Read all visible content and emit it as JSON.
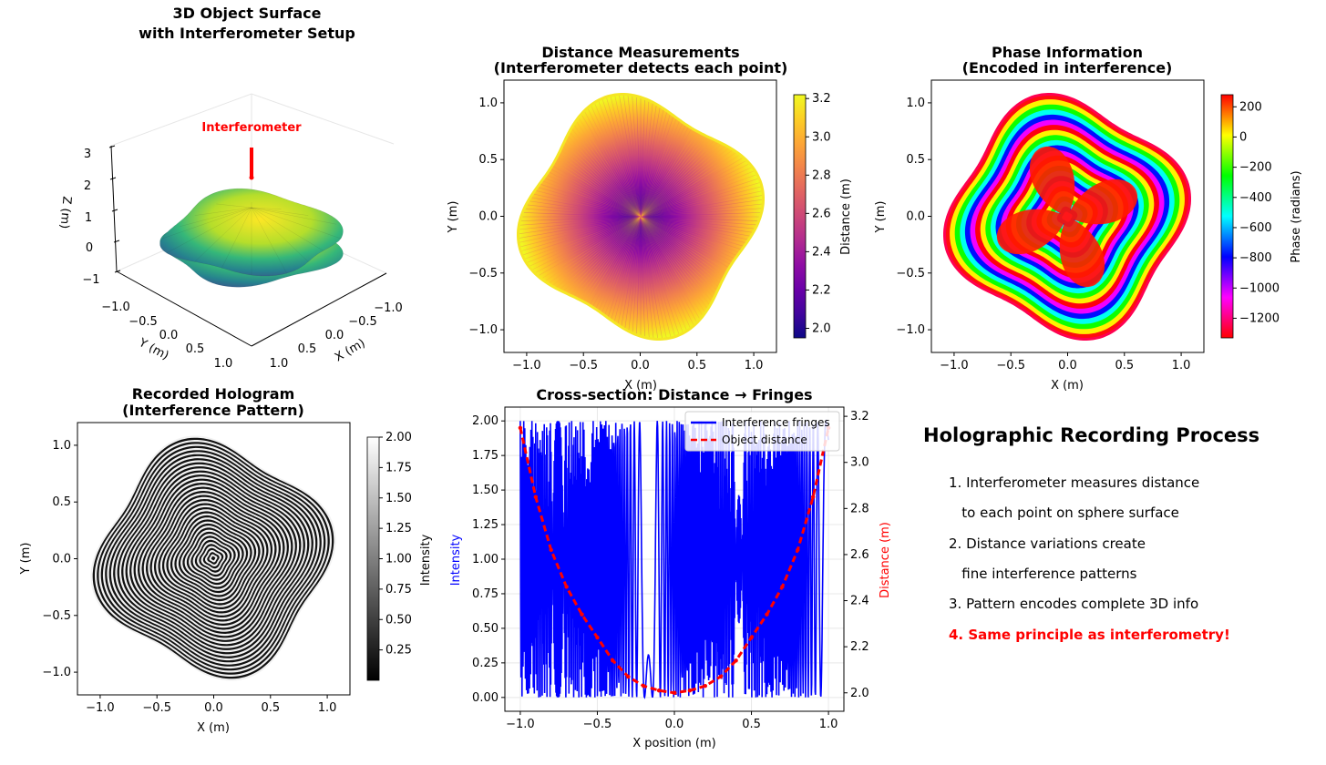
{
  "colors": {
    "plasma": [
      "#0d0887",
      "#41049d",
      "#6a00a8",
      "#8f0da4",
      "#b12a90",
      "#cc4778",
      "#e16462",
      "#f2844b",
      "#fca636",
      "#fcce25",
      "#f0f921"
    ],
    "hsv": [
      "#ff0000",
      "#ffff00",
      "#00ff00",
      "#00ffff",
      "#0000ff",
      "#ff00ff",
      "#ff0000"
    ],
    "viridis": [
      "#440154",
      "#3b528b",
      "#21918c",
      "#5ec962",
      "#fde725"
    ],
    "fringe": "#0000ff",
    "distance": "#ff0000",
    "annotation": "#ff0000"
  },
  "panel3d": {
    "title": [
      "3D Object Surface",
      "with Interferometer Setup"
    ],
    "annotation": "Interferometer",
    "zlabel": "Z (m)",
    "xlabel": "X (m)",
    "ylabel": "Y (m)",
    "zticks": [
      "3",
      "2",
      "1",
      "0",
      "−1"
    ],
    "xticks": [
      "−1.0",
      "−0.5",
      "0.0",
      "0.5",
      "1.0"
    ],
    "yticks": [
      "−1.0",
      "−0.5",
      "0.0",
      "0.5",
      "1.0"
    ]
  },
  "panelDist": {
    "title": [
      "Distance Measurements",
      "(Interferometer detects each point)"
    ],
    "xlabel": "X (m)",
    "ylabel": "Y (m)",
    "cbar_label": "Distance (m)",
    "cbar_ticks": [
      "3.2",
      "3.0",
      "2.8",
      "2.6",
      "2.4",
      "2.2",
      "2.0"
    ]
  },
  "panelPhase": {
    "title": [
      "Phase Information",
      "(Encoded in interference)"
    ],
    "xlabel": "X (m)",
    "ylabel": "Y (m)",
    "cbar_label": "Phase (radians)",
    "cbar_ticks": [
      "200",
      "0",
      "−200",
      "−400",
      "−600",
      "−800",
      "−1000",
      "−1200"
    ]
  },
  "panelHolo": {
    "title": [
      "Recorded Hologram",
      "(Interference Pattern)"
    ],
    "xlabel": "X (m)",
    "ylabel": "Y (m)",
    "cbar_label": "Intensity",
    "cbar_ticks": [
      "2.00",
      "1.75",
      "1.50",
      "1.25",
      "1.00",
      "0.75",
      "0.50",
      "0.25"
    ]
  },
  "panelCross": {
    "title": "Cross-section: Distance → Fringes",
    "xlabel": "X position (m)",
    "ylabel": "Intensity",
    "y2label": "Distance (m)",
    "legend": [
      "Interference fringes",
      "Object distance"
    ],
    "xticks": [
      "−1.0",
      "−0.5",
      "0.0",
      "0.5",
      "1.0"
    ],
    "yticks": [
      "2.00",
      "1.75",
      "1.50",
      "1.25",
      "1.00",
      "0.75",
      "0.50",
      "0.25",
      "0.00"
    ],
    "y2ticks": [
      "3.2",
      "3.0",
      "2.8",
      "2.6",
      "2.4",
      "2.2",
      "2.0"
    ]
  },
  "axisTicks": {
    "x": [
      "−1.0",
      "−0.5",
      "0.0",
      "0.5",
      "1.0"
    ],
    "y": [
      "1.0",
      "0.5",
      "0.0",
      "−0.5",
      "−1.0"
    ]
  },
  "textPanel": {
    "title": "Holographic Recording Process",
    "lines": [
      "1. Interferometer measures distance",
      "   to each point on sphere surface",
      "2. Distance variations create",
      "   fine interference patterns",
      "3. Pattern encodes complete 3D info",
      "4. Same principle as interferometry!"
    ]
  },
  "chart_data": [
    {
      "type": "heatmap",
      "title": "3D Object Surface with Interferometer Setup",
      "xlabel": "X (m)",
      "ylabel": "Y (m)",
      "zlabel": "Z (m)",
      "xlim": [
        -1.0,
        1.0
      ],
      "ylim": [
        -1.0,
        1.0
      ],
      "zlim": [
        -1,
        3
      ],
      "surface_radius": "r = 1 + 0.1*cos(4*phi)",
      "annotation": "Interferometer"
    },
    {
      "type": "heatmap",
      "title": "Distance Measurements (Interferometer detects each point)",
      "xlabel": "X (m)",
      "ylabel": "Y (m)",
      "xlim": [
        -1.2,
        1.2
      ],
      "ylim": [
        -1.2,
        1.2
      ],
      "colorbar": {
        "label": "Distance (m)",
        "range": [
          1.95,
          3.22
        ]
      },
      "center_value": 1.95,
      "edge_value": 3.2
    },
    {
      "type": "heatmap",
      "title": "Phase Information (Encoded in interference)",
      "xlabel": "X (m)",
      "ylabel": "Y (m)",
      "xlim": [
        -1.2,
        1.2
      ],
      "ylim": [
        -1.2,
        1.2
      ],
      "colorbar": {
        "label": "Phase (radians)",
        "range": [
          -1330,
          280
        ]
      }
    },
    {
      "type": "heatmap",
      "title": "Recorded Hologram (Interference Pattern)",
      "xlabel": "X (m)",
      "ylabel": "Y (m)",
      "xlim": [
        -1.2,
        1.2
      ],
      "ylim": [
        -1.2,
        1.2
      ],
      "colorbar": {
        "label": "Intensity",
        "range": [
          0.0,
          2.0
        ]
      }
    },
    {
      "type": "line",
      "title": "Cross-section: Distance → Fringes",
      "xlabel": "X position (m)",
      "ylabel": "Intensity",
      "y2label": "Distance (m)",
      "xlim": [
        -1.1,
        1.1
      ],
      "ylim": [
        -0.1,
        2.1
      ],
      "y2lim": [
        1.92,
        3.24
      ],
      "series": [
        {
          "name": "Interference fringes",
          "axis": "left",
          "range": [
            0.0,
            2.0
          ]
        },
        {
          "name": "Object distance",
          "axis": "right",
          "x": [
            -1.0,
            -0.9,
            -0.8,
            -0.7,
            -0.6,
            -0.5,
            -0.4,
            -0.3,
            -0.2,
            -0.1,
            0.0,
            0.1,
            0.2,
            0.3,
            0.4,
            0.5,
            0.6,
            0.7,
            0.8,
            0.9,
            1.0
          ],
          "values": [
            3.15,
            2.85,
            2.62,
            2.46,
            2.34,
            2.24,
            2.14,
            2.07,
            2.03,
            2.01,
            2.0,
            2.01,
            2.03,
            2.07,
            2.14,
            2.24,
            2.34,
            2.46,
            2.62,
            2.85,
            3.15
          ]
        }
      ],
      "legend": "top-right"
    }
  ]
}
